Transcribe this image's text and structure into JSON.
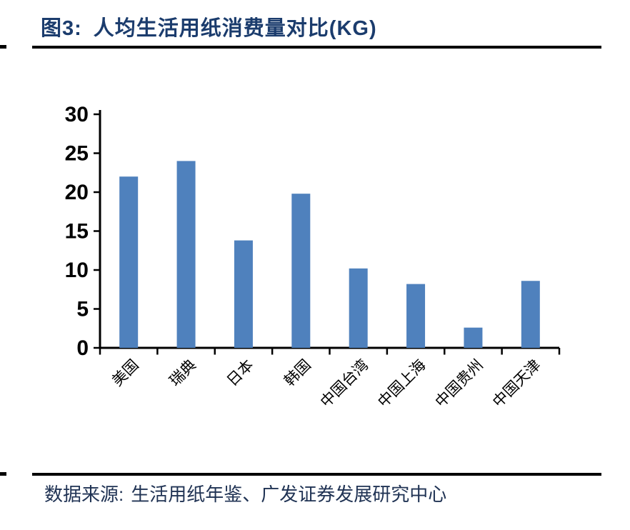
{
  "header": {
    "figure_label": "图3:",
    "title": "人均生活用纸消费量对比(KG)"
  },
  "footer": {
    "source_label": "数据来源:",
    "source_text": "生活用纸年鉴、广发证券发展研究中心"
  },
  "chart_data": {
    "type": "bar",
    "title": "人均生活用纸消费量对比(KG)",
    "categories": [
      "美国",
      "瑞典",
      "日本",
      "韩国",
      "中国台湾",
      "中国上海",
      "中国贵州",
      "中国天津"
    ],
    "values": [
      22.0,
      24.0,
      13.8,
      19.8,
      10.2,
      8.2,
      2.6,
      8.6
    ],
    "xlabel": "",
    "ylabel": "",
    "ylim": [
      0,
      30
    ],
    "yticks": [
      0,
      5,
      10,
      15,
      20,
      25,
      30
    ],
    "grid": false,
    "legend": "none",
    "bar_color": "#4F81BD",
    "axis_color": "#000000",
    "tick_label_color": "#000000",
    "category_label_rotation_deg": -45
  },
  "colors": {
    "title_navy": "#1B3C6D",
    "source_navy": "#203354",
    "rule_black": "#000000"
  }
}
